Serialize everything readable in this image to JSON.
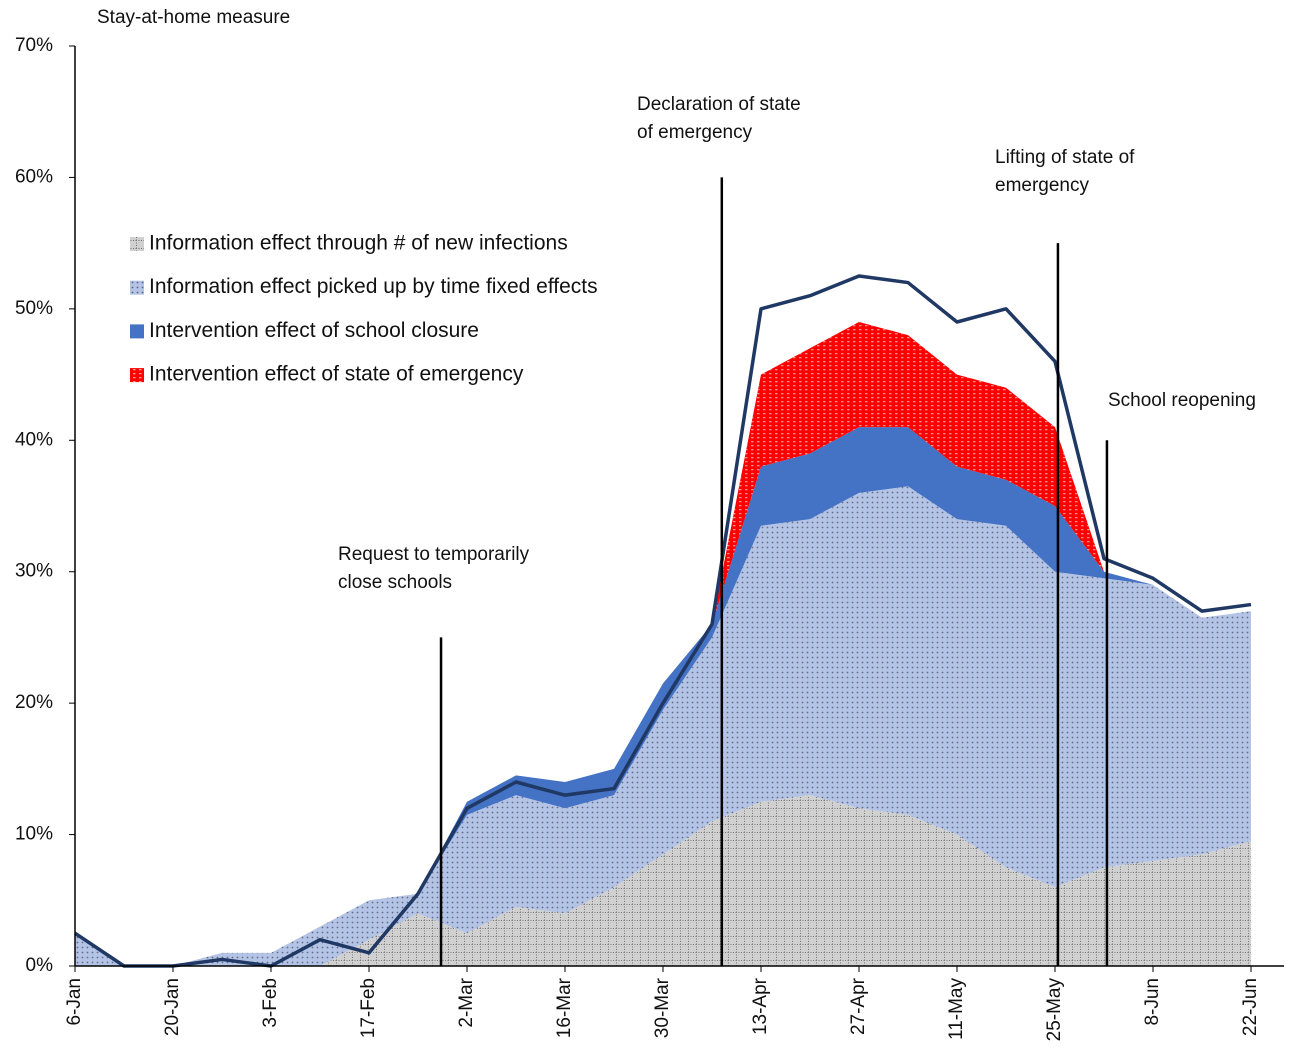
{
  "chart_data": {
    "type": "stacked_area",
    "y_axis_label": "Stay-at-home measure",
    "categories": [
      "6-Jan",
      null,
      "20-Jan",
      null,
      "3-Feb",
      null,
      "17-Feb",
      null,
      "2-Mar",
      null,
      "16-Mar",
      null,
      "30-Mar",
      null,
      "13-Apr",
      null,
      "27-Apr",
      null,
      "11-May",
      null,
      "25-May",
      null,
      "8-Jun",
      null,
      "22-Jun"
    ],
    "series": [
      {
        "name": "Information effect through # of new infections",
        "color": "#d0d0d0",
        "values": [
          0,
          0,
          0,
          0,
          0,
          0,
          2,
          4,
          2.5,
          4.5,
          4,
          6,
          8.5,
          11,
          12.5,
          13,
          12,
          11.5,
          10,
          7.5,
          6,
          7.5,
          8,
          8.5,
          9.5
        ]
      },
      {
        "name": "Information effect picked up by time fixed effects",
        "color": "#b4c4e6",
        "values": [
          2.5,
          0,
          0,
          1,
          1,
          3,
          3,
          1.5,
          9,
          8.5,
          8,
          7,
          11,
          14,
          21,
          21,
          24,
          25,
          24,
          26,
          24,
          22,
          21,
          18,
          17.5
        ]
      },
      {
        "name": "Intervention effect of school closure",
        "color": "#4472c4",
        "values": [
          0,
          0,
          0,
          0,
          0,
          0,
          0,
          0,
          1,
          1.5,
          2,
          2,
          2,
          1,
          4.5,
          5,
          5,
          4.5,
          4,
          3.5,
          5,
          0.5,
          0,
          0,
          0
        ]
      },
      {
        "name": "Intervention effect of state of emergency",
        "color": "#ff0000",
        "values": [
          0,
          0,
          0,
          0,
          0,
          0,
          0,
          0,
          0,
          0,
          0,
          0,
          0,
          0,
          7,
          8,
          8,
          7,
          7,
          7,
          6,
          0,
          0,
          0,
          0
        ]
      },
      {
        "type": "line",
        "color": "#203864",
        "values": [
          2.5,
          0,
          0,
          0.5,
          0,
          2,
          1,
          5.5,
          12,
          14,
          13,
          13.5,
          20,
          26,
          50,
          51,
          52.5,
          52,
          49,
          50,
          46,
          31,
          29.5,
          27,
          27.5
        ]
      }
    ],
    "ylim": [
      0,
      70
    ],
    "yticks": [
      {
        "value": 0,
        "label": "0%"
      },
      {
        "value": 10,
        "label": "10%"
      },
      {
        "value": 20,
        "label": "20%"
      },
      {
        "value": 30,
        "label": "30%"
      },
      {
        "value": 40,
        "label": "40%"
      },
      {
        "value": 50,
        "label": "50%"
      },
      {
        "value": 60,
        "label": "60%"
      },
      {
        "value": 70,
        "label": "70%"
      }
    ],
    "legend": "upper left",
    "annotations": [
      {
        "text": [
          "Request to temporarily",
          "close schools"
        ],
        "x": 7.47,
        "y": 25
      },
      {
        "text": [
          "Declaration of state",
          "of emergency"
        ],
        "x": 13.2,
        "y": 60
      },
      {
        "text": [
          "Lifting of state of",
          "emergency"
        ],
        "x": 20.06,
        "y": 55
      },
      {
        "text": [
          "School reopening"
        ],
        "x": 21.06,
        "y": 40
      }
    ]
  }
}
